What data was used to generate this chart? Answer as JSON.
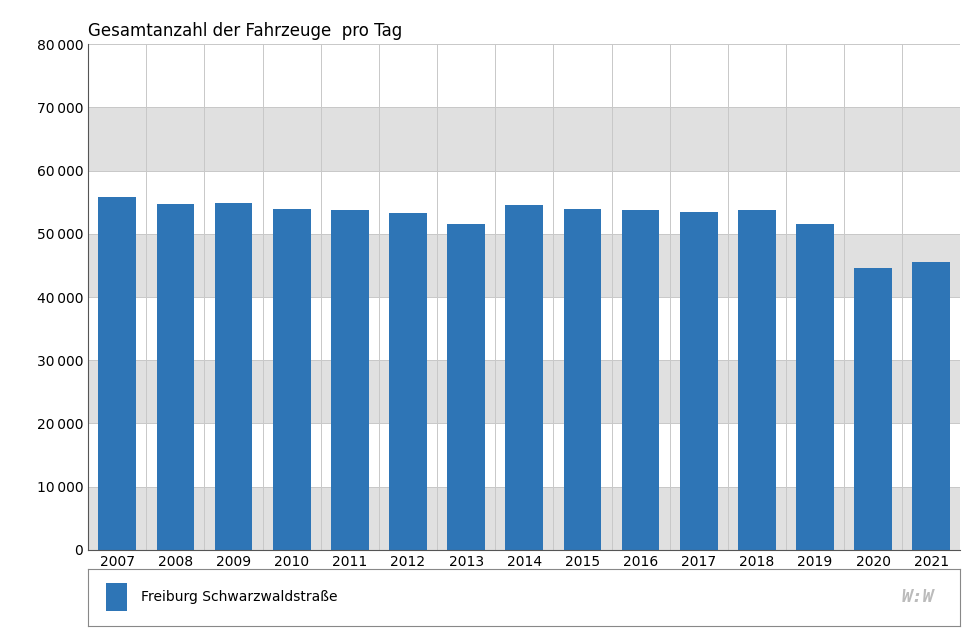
{
  "years": [
    2007,
    2008,
    2009,
    2010,
    2011,
    2012,
    2013,
    2014,
    2015,
    2016,
    2017,
    2018,
    2019,
    2020,
    2021
  ],
  "values": [
    55900,
    54700,
    54900,
    53900,
    53700,
    53300,
    51600,
    54500,
    53900,
    53700,
    53500,
    53700,
    51500,
    44600,
    45600
  ],
  "bar_color": "#2E75B6",
  "title": "Gesamtanzahl der Fahrzeuge  pro Tag",
  "legend_label": "Freiburg Schwarzwaldstraße",
  "ylim": [
    0,
    80000
  ],
  "yticks": [
    0,
    10000,
    20000,
    30000,
    40000,
    50000,
    60000,
    70000,
    80000
  ],
  "bg_color": "#ffffff",
  "plot_bg_color": "#ffffff",
  "band_color": "#e0e0e0",
  "grid_line_color": "#c8c8c8",
  "title_fontsize": 12,
  "tick_fontsize": 10,
  "legend_fontsize": 10
}
